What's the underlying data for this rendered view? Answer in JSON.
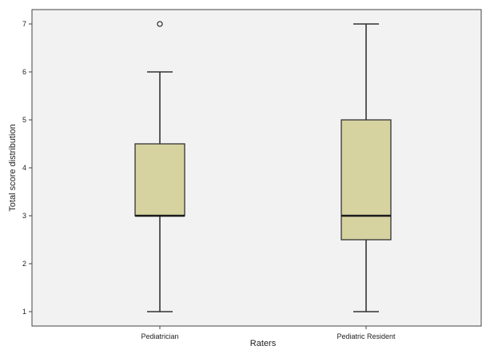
{
  "chart_data": {
    "type": "boxplot",
    "title": "",
    "xlabel": "Raters",
    "ylabel": "Total score distribution",
    "categories": [
      "Pediatrician",
      "Pediatric Resident"
    ],
    "yticks": [
      1,
      2,
      3,
      4,
      5,
      6,
      7
    ],
    "ylim": [
      0.7,
      7.3
    ],
    "boxes": [
      {
        "category": "Pediatrician",
        "min": 1,
        "q1": 3,
        "median": 3,
        "q3": 4.5,
        "max": 6,
        "outliers": [
          7
        ]
      },
      {
        "category": "Pediatric Resident",
        "min": 1,
        "q1": 2.5,
        "median": 3,
        "q3": 5,
        "max": 7,
        "outliers": []
      }
    ],
    "grid": false,
    "legend": "none"
  },
  "colors": {
    "plot_background": "#f2f2f2",
    "box_fill": "#d7d3a1",
    "box_stroke": "#333333",
    "median": "#1a1a1a",
    "axis": "#444444"
  }
}
